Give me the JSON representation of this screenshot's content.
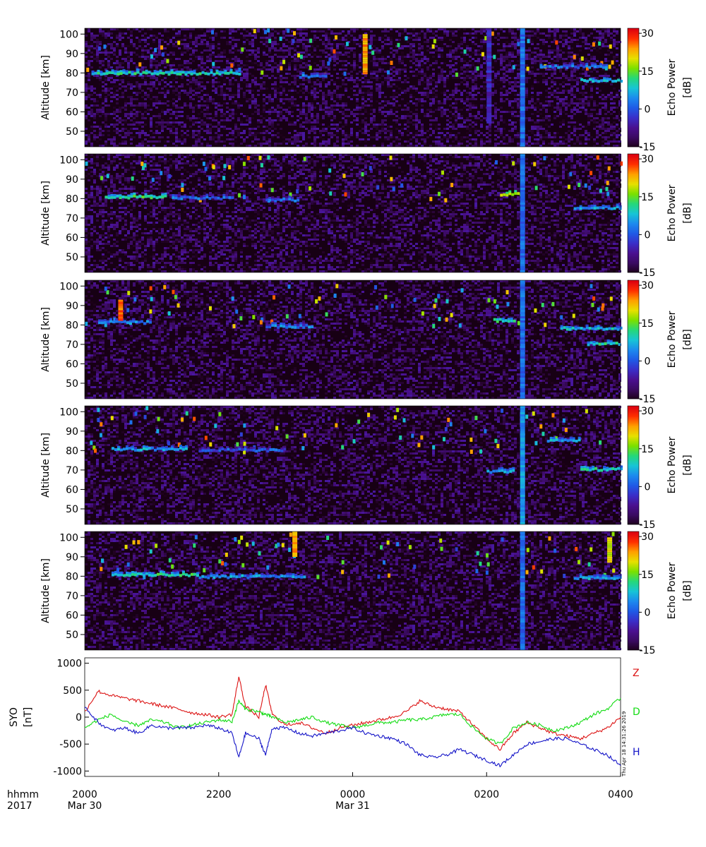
{
  "colorbar": {
    "title_line1": "Echo Power",
    "title_line2": "[dB]",
    "ticks": [
      30,
      15,
      0,
      -15
    ],
    "range": [
      -15,
      32
    ],
    "colors": [
      "#1c0018",
      "#3a0a60",
      "#4a1090",
      "#3a2ec8",
      "#1f5ae6",
      "#1c8aee",
      "#17c4d6",
      "#25d87a",
      "#7ae000",
      "#e6e000",
      "#ffa000",
      "#ff3000",
      "#dc0010"
    ]
  },
  "echo_panels": {
    "ylabel": "Altitude [km]",
    "yticks": [
      100,
      90,
      80,
      70,
      60,
      50
    ],
    "ylim": [
      42,
      103
    ],
    "count": 5
  },
  "mag_panel": {
    "ylabel_line1": "SYO",
    "ylabel_line2": "[nT]",
    "yticks": [
      1000,
      500,
      0,
      -500,
      -1000
    ],
    "ylim": [
      -1100,
      1100
    ],
    "series_labels": [
      {
        "name": "Z",
        "color": "#dc1414"
      },
      {
        "name": "D",
        "color": "#14dc14"
      },
      {
        "name": "H",
        "color": "#1414c8"
      }
    ]
  },
  "time_axis": {
    "row_label1": "hhmm",
    "row_label2": "2017",
    "ticks": [
      "2000",
      "2200",
      "0000",
      "0200",
      "0400"
    ],
    "dates": [
      {
        "label": "Mar 30",
        "at": "2000"
      },
      {
        "label": "Mar 31",
        "at": "0000"
      }
    ]
  },
  "stamp": "Thu Apr 18 14:31:26 2019",
  "chart_data": [
    {
      "type": "heatmap",
      "xlabel": "",
      "ylabel": "Altitude [km]",
      "x_range": [
        "2017-03-30 20:00",
        "2017-03-31 04:00"
      ],
      "ylim": [
        42,
        103
      ],
      "zlabel": "Echo Power [dB]",
      "zlim": [
        -15,
        32
      ],
      "features": [
        {
          "type": "layer",
          "start_hour": 20.1,
          "end_hour": 22.3,
          "alt": 79.5,
          "db": 10
        },
        {
          "type": "layer",
          "start_hour": 23.2,
          "end_hour": 23.6,
          "alt": 78,
          "db": 3
        },
        {
          "type": "layer",
          "start_hour": 2.8,
          "end_hour": 3.8,
          "alt": 83,
          "db": 2
        },
        {
          "type": "layer",
          "start_hour": 3.4,
          "end_hour": 4.0,
          "alt": 76,
          "db": 8
        },
        {
          "type": "column",
          "hour": 2.5,
          "alt": [
            42,
            103
          ],
          "db": 2
        },
        {
          "type": "column",
          "hour": 2.0,
          "alt": [
            55,
            103
          ],
          "db": -4
        },
        {
          "type": "column",
          "hour": 0.15,
          "alt": [
            80,
            100
          ],
          "db": 24
        }
      ]
    },
    {
      "type": "heatmap",
      "xlabel": "",
      "ylabel": "Altitude [km]",
      "x_range": [
        "2017-03-30 20:00",
        "2017-03-31 04:00"
      ],
      "ylim": [
        42,
        103
      ],
      "zlabel": "Echo Power [dB]",
      "zlim": [
        -15,
        32
      ],
      "features": [
        {
          "type": "layer",
          "start_hour": 20.3,
          "end_hour": 21.2,
          "alt": 80.5,
          "db": 12
        },
        {
          "type": "layer",
          "start_hour": 21.3,
          "end_hour": 22.2,
          "alt": 80,
          "db": 2
        },
        {
          "type": "layer",
          "start_hour": 22.7,
          "end_hour": 23.2,
          "alt": 79,
          "db": 1
        },
        {
          "type": "layer",
          "start_hour": 2.2,
          "end_hour": 2.5,
          "alt": 82,
          "db": 16
        },
        {
          "type": "layer",
          "start_hour": 3.3,
          "end_hour": 4.0,
          "alt": 75,
          "db": 5
        },
        {
          "type": "column",
          "hour": 2.5,
          "alt": [
            42,
            103
          ],
          "db": 2
        }
      ]
    },
    {
      "type": "heatmap",
      "xlabel": "",
      "ylabel": "Altitude [km]",
      "x_range": [
        "2017-03-30 20:00",
        "2017-03-31 04:00"
      ],
      "ylim": [
        42,
        103
      ],
      "zlabel": "Echo Power [dB]",
      "zlim": [
        -15,
        32
      ],
      "features": [
        {
          "type": "layer",
          "start_hour": 20.2,
          "end_hour": 21.0,
          "alt": 81,
          "db": 4
        },
        {
          "type": "layer",
          "start_hour": 22.7,
          "end_hour": 23.4,
          "alt": 79,
          "db": 3
        },
        {
          "type": "layer",
          "start_hour": 2.1,
          "end_hour": 2.4,
          "alt": 82,
          "db": 10
        },
        {
          "type": "layer",
          "start_hour": 3.1,
          "end_hour": 4.0,
          "alt": 78,
          "db": 8
        },
        {
          "type": "layer",
          "start_hour": 3.5,
          "end_hour": 4.0,
          "alt": 70,
          "db": 10
        },
        {
          "type": "column",
          "hour": 2.5,
          "alt": [
            42,
            103
          ],
          "db": 2
        },
        {
          "type": "column",
          "hour": 20.5,
          "alt": [
            83,
            93
          ],
          "db": 26
        }
      ]
    },
    {
      "type": "heatmap",
      "xlabel": "",
      "ylabel": "Altitude [km]",
      "x_range": [
        "2017-03-30 20:00",
        "2017-03-31 04:00"
      ],
      "ylim": [
        42,
        103
      ],
      "zlabel": "Echo Power [dB]",
      "zlim": [
        -15,
        32
      ],
      "features": [
        {
          "type": "layer",
          "start_hour": 20.4,
          "end_hour": 21.5,
          "alt": 80.5,
          "db": 6
        },
        {
          "type": "layer",
          "start_hour": 21.7,
          "end_hour": 23.0,
          "alt": 80,
          "db": 0
        },
        {
          "type": "layer",
          "start_hour": 2.0,
          "end_hour": 2.4,
          "alt": 69,
          "db": 6
        },
        {
          "type": "layer",
          "start_hour": 2.9,
          "end_hour": 3.4,
          "alt": 85,
          "db": 6
        },
        {
          "type": "layer",
          "start_hour": 3.4,
          "end_hour": 4.0,
          "alt": 70,
          "db": 10
        },
        {
          "type": "column",
          "hour": 2.5,
          "alt": [
            42,
            103
          ],
          "db": 5
        }
      ]
    },
    {
      "type": "heatmap",
      "xlabel": "",
      "ylabel": "Altitude [km]",
      "x_range": [
        "2017-03-30 20:00",
        "2017-03-31 04:00"
      ],
      "ylim": [
        42,
        103
      ],
      "zlabel": "Echo Power [dB]",
      "zlim": [
        -15,
        32
      ],
      "features": [
        {
          "type": "layer",
          "start_hour": 20.4,
          "end_hour": 21.7,
          "alt": 80.5,
          "db": 11
        },
        {
          "type": "layer",
          "start_hour": 21.7,
          "end_hour": 23.3,
          "alt": 79.5,
          "db": 5
        },
        {
          "type": "layer",
          "start_hour": 3.3,
          "end_hour": 4.0,
          "alt": 79,
          "db": 6
        },
        {
          "type": "column",
          "hour": 2.5,
          "alt": [
            42,
            103
          ],
          "db": 2
        },
        {
          "type": "column",
          "hour": 23.1,
          "alt": [
            90,
            103
          ],
          "db": 24
        },
        {
          "type": "column",
          "hour": 3.8,
          "alt": [
            88,
            100
          ],
          "db": 20
        }
      ]
    },
    {
      "type": "line",
      "xlabel": "",
      "ylabel": "SYO [nT]",
      "x_range": [
        "2017-03-30 20:00",
        "2017-03-31 04:00"
      ],
      "ylim": [
        -1100,
        1100
      ],
      "x_hours": [
        20.0,
        20.2,
        20.4,
        20.6,
        20.8,
        21.0,
        21.2,
        21.4,
        21.6,
        21.8,
        22.0,
        22.2,
        22.3,
        22.4,
        22.6,
        22.7,
        22.8,
        23.0,
        23.2,
        23.4,
        23.6,
        23.8,
        24.0,
        24.2,
        24.4,
        24.6,
        24.8,
        25.0,
        25.2,
        25.4,
        25.6,
        25.8,
        26.0,
        26.2,
        26.4,
        26.6,
        26.8,
        27.0,
        27.2,
        27.4,
        27.6,
        27.8,
        28.0
      ],
      "series": [
        {
          "name": "Z",
          "values": [
            100,
            480,
            400,
            350,
            300,
            250,
            200,
            150,
            80,
            50,
            0,
            50,
            750,
            200,
            0,
            600,
            50,
            -150,
            -100,
            -200,
            -300,
            -200,
            -150,
            -100,
            -50,
            0,
            100,
            300,
            200,
            150,
            100,
            -150,
            -400,
            -600,
            -300,
            -100,
            -200,
            -300,
            -350,
            -400,
            -300,
            -200,
            0
          ]
        },
        {
          "name": "D",
          "values": [
            -200,
            -50,
            50,
            -100,
            -150,
            -50,
            -100,
            -200,
            -150,
            -100,
            -50,
            -80,
            300,
            150,
            100,
            50,
            0,
            -100,
            -50,
            0,
            -100,
            -150,
            -200,
            -150,
            -100,
            -100,
            -50,
            -50,
            0,
            50,
            50,
            -200,
            -400,
            -500,
            -200,
            -100,
            -150,
            -250,
            -200,
            -100,
            50,
            150,
            350
          ]
        },
        {
          "name": "H",
          "values": [
            200,
            -100,
            -250,
            -200,
            -300,
            -150,
            -200,
            -200,
            -200,
            -150,
            -200,
            -300,
            -750,
            -300,
            -400,
            -700,
            -200,
            -200,
            -300,
            -350,
            -300,
            -250,
            -200,
            -300,
            -350,
            -400,
            -500,
            -700,
            -750,
            -700,
            -600,
            -700,
            -800,
            -900,
            -700,
            -500,
            -450,
            -400,
            -400,
            -500,
            -600,
            -700,
            -900
          ]
        }
      ]
    }
  ]
}
